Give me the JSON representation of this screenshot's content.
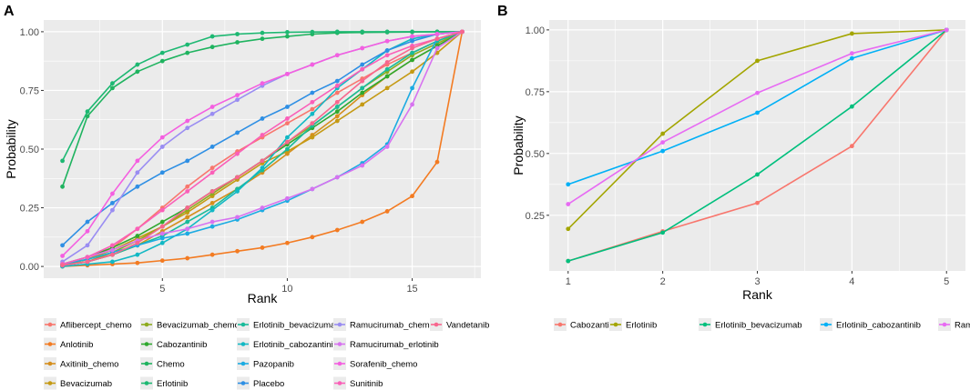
{
  "chart_data": [
    {
      "panel": "A",
      "type": "line",
      "xlabel": "Rank",
      "ylabel": "Probability",
      "xlim": [
        0.25,
        17.75
      ],
      "ylim": [
        -0.05,
        1.05
      ],
      "xticks": [
        5,
        10,
        15
      ],
      "xtick_labels": [
        "5",
        "10",
        "15"
      ],
      "yticks": [
        0,
        0.25,
        0.5,
        0.75,
        1.0
      ],
      "ytick_labels": [
        "0.00",
        "0.25",
        "0.50",
        "0.75",
        "1.00"
      ],
      "legend_position": "bottom",
      "x": [
        1,
        2,
        3,
        4,
        5,
        6,
        7,
        8,
        9,
        10,
        11,
        12,
        13,
        14,
        15,
        16,
        17
      ],
      "series": [
        {
          "name": "Aflibercept_chemo",
          "color": "#F8766D",
          "values": [
            0.01,
            0.03,
            0.08,
            0.16,
            0.25,
            0.34,
            0.42,
            0.49,
            0.55,
            0.61,
            0.67,
            0.74,
            0.8,
            0.86,
            0.91,
            0.96,
            1.0
          ]
        },
        {
          "name": "Anlotinib",
          "color": "#F37B22",
          "values": [
            0.0,
            0.005,
            0.01,
            0.015,
            0.025,
            0.035,
            0.05,
            0.065,
            0.08,
            0.1,
            0.125,
            0.155,
            0.19,
            0.235,
            0.3,
            0.445,
            1.0
          ]
        },
        {
          "name": "Axitinib_chemo",
          "color": "#D58F1E",
          "values": [
            0.005,
            0.02,
            0.05,
            0.09,
            0.15,
            0.21,
            0.27,
            0.33,
            0.4,
            0.48,
            0.56,
            0.64,
            0.73,
            0.81,
            0.88,
            0.94,
            1.0
          ]
        },
        {
          "name": "Bevacizumab",
          "color": "#C59A14",
          "values": [
            0.005,
            0.03,
            0.07,
            0.12,
            0.17,
            0.23,
            0.3,
            0.37,
            0.44,
            0.49,
            0.55,
            0.62,
            0.69,
            0.76,
            0.83,
            0.91,
            1.0
          ]
        },
        {
          "name": "Bevacizumab_chemo",
          "color": "#8EAB1F",
          "values": [
            0.005,
            0.02,
            0.06,
            0.11,
            0.17,
            0.24,
            0.31,
            0.38,
            0.45,
            0.53,
            0.6,
            0.68,
            0.76,
            0.83,
            0.9,
            0.95,
            1.0
          ]
        },
        {
          "name": "Cabozantinib",
          "color": "#2FA82F",
          "values": [
            0.01,
            0.04,
            0.08,
            0.13,
            0.19,
            0.25,
            0.32,
            0.38,
            0.45,
            0.52,
            0.59,
            0.66,
            0.74,
            0.81,
            0.88,
            0.94,
            1.0
          ]
        },
        {
          "name": "Chemo",
          "color": "#1FB35F",
          "values": [
            0.34,
            0.64,
            0.76,
            0.83,
            0.875,
            0.91,
            0.935,
            0.955,
            0.97,
            0.98,
            0.99,
            0.995,
            0.997,
            0.998,
            0.999,
            1.0,
            1.0
          ]
        },
        {
          "name": "Erlotinib",
          "color": "#1DB872",
          "values": [
            0.45,
            0.66,
            0.78,
            0.86,
            0.91,
            0.945,
            0.98,
            0.99,
            0.995,
            0.998,
            0.999,
            1.0,
            1.0,
            1.0,
            1.0,
            1.0,
            1.0
          ]
        },
        {
          "name": "Erlotinib_bevacizumab",
          "color": "#19BB9A",
          "values": [
            0.005,
            0.02,
            0.05,
            0.09,
            0.13,
            0.19,
            0.25,
            0.33,
            0.41,
            0.5,
            0.6,
            0.68,
            0.76,
            0.84,
            0.91,
            0.96,
            1.0
          ]
        },
        {
          "name": "Erlotinib_cabozantinib",
          "color": "#12B8C4",
          "values": [
            0.0,
            0.01,
            0.02,
            0.05,
            0.1,
            0.16,
            0.24,
            0.32,
            0.42,
            0.55,
            0.65,
            0.76,
            0.84,
            0.92,
            0.97,
            0.99,
            1.0
          ]
        },
        {
          "name": "Pazopanib",
          "color": "#1CABE2",
          "values": [
            0.01,
            0.03,
            0.06,
            0.09,
            0.12,
            0.14,
            0.17,
            0.2,
            0.24,
            0.28,
            0.33,
            0.38,
            0.44,
            0.52,
            0.76,
            0.97,
            1.0
          ]
        },
        {
          "name": "Placebo",
          "color": "#2E8FE4",
          "values": [
            0.09,
            0.19,
            0.27,
            0.34,
            0.4,
            0.45,
            0.51,
            0.57,
            0.63,
            0.68,
            0.74,
            0.79,
            0.86,
            0.92,
            0.96,
            0.99,
            1.0
          ]
        },
        {
          "name": "Ramucirumab_chemo",
          "color": "#9A8DF2",
          "values": [
            0.02,
            0.09,
            0.24,
            0.4,
            0.51,
            0.59,
            0.65,
            0.71,
            0.77,
            0.82,
            0.86,
            0.9,
            0.93,
            0.96,
            0.98,
            0.99,
            1.0
          ]
        },
        {
          "name": "Ramucirumab_erlotinib",
          "color": "#D773F0",
          "values": [
            0.01,
            0.04,
            0.07,
            0.11,
            0.14,
            0.16,
            0.19,
            0.21,
            0.25,
            0.29,
            0.33,
            0.38,
            0.43,
            0.51,
            0.69,
            0.93,
            1.0
          ]
        },
        {
          "name": "Sorafenib_chemo",
          "color": "#F45FE0",
          "values": [
            0.045,
            0.15,
            0.31,
            0.45,
            0.55,
            0.62,
            0.68,
            0.73,
            0.78,
            0.82,
            0.86,
            0.9,
            0.93,
            0.96,
            0.98,
            0.99,
            1.0
          ]
        },
        {
          "name": "Sunitinib",
          "color": "#FA5FB8",
          "values": [
            0.01,
            0.04,
            0.09,
            0.16,
            0.24,
            0.32,
            0.4,
            0.48,
            0.56,
            0.63,
            0.7,
            0.77,
            0.84,
            0.9,
            0.94,
            0.97,
            1.0
          ]
        },
        {
          "name": "Vandetanib",
          "color": "#F8668E",
          "values": [
            0.005,
            0.02,
            0.05,
            0.1,
            0.17,
            0.25,
            0.32,
            0.38,
            0.45,
            0.53,
            0.61,
            0.7,
            0.79,
            0.87,
            0.93,
            0.97,
            1.0
          ]
        }
      ],
      "legend_order": [
        "Aflibercept_chemo",
        "Anlotinib",
        "Axitinib_chemo",
        "Bevacizumab",
        "Bevacizumab_chemo",
        "Cabozantinib",
        "Chemo",
        "Erlotinib",
        "Erlotinib_bevacizumab",
        "Erlotinib_cabozantinib",
        "Pazopanib",
        "Placebo",
        "Ramucirumab_chemo",
        "Ramucirumab_erlotinib",
        "Sorafenib_chemo",
        "Sunitinib",
        "Vandetanib"
      ]
    },
    {
      "panel": "B",
      "type": "line",
      "xlabel": "Rank",
      "ylabel": "Probability",
      "xlim": [
        0.8,
        5.2
      ],
      "ylim": [
        0.025,
        1.04
      ],
      "xticks": [
        1,
        2,
        3,
        4,
        5
      ],
      "xtick_labels": [
        "1",
        "2",
        "3",
        "4",
        "5"
      ],
      "yticks": [
        0.25,
        0.5,
        0.75,
        1.0
      ],
      "ytick_labels": [
        "0.25",
        "0.50",
        "0.75",
        "1.00"
      ],
      "legend_position": "bottom",
      "x": [
        1,
        2,
        3,
        4,
        5
      ],
      "series": [
        {
          "name": "Cabozantinib",
          "color": "#F8766D",
          "values": [
            0.065,
            0.185,
            0.3,
            0.53,
            1.0
          ]
        },
        {
          "name": "Erlotinib",
          "color": "#A3A500",
          "values": [
            0.195,
            0.58,
            0.875,
            0.985,
            1.0
          ]
        },
        {
          "name": "Erlotinib_bevacizumab",
          "color": "#00BF7D",
          "values": [
            0.065,
            0.18,
            0.415,
            0.69,
            1.0
          ]
        },
        {
          "name": "Erlotinib_cabozantinib",
          "color": "#00B0F6",
          "values": [
            0.375,
            0.51,
            0.665,
            0.885,
            1.0
          ]
        },
        {
          "name": "Ramucirumab_erlotinib",
          "color": "#E76BF3",
          "values": [
            0.295,
            0.545,
            0.745,
            0.905,
            1.0
          ]
        }
      ],
      "legend_order": [
        "Cabozantinib",
        "Erlotinib",
        "Erlotinib_bevacizumab",
        "Erlotinib_cabozantinib",
        "Ramucirumab_erlotinib"
      ]
    }
  ],
  "panel_labels": {
    "a": "A",
    "b": "B"
  }
}
